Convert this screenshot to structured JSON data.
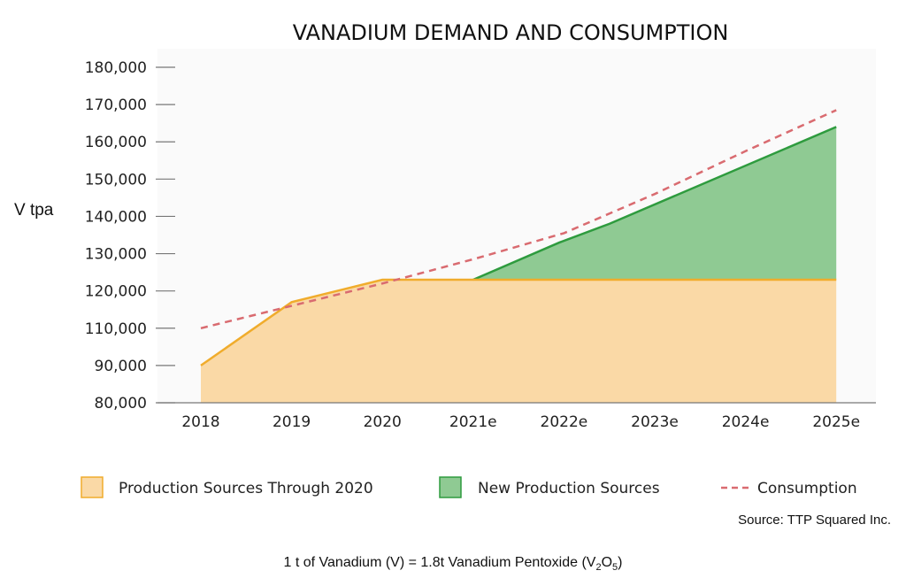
{
  "chart_data": {
    "type": "area",
    "title": "VANADIUM DEMAND AND CONSUMPTION",
    "ylabel": "V tpa",
    "xlabel": "",
    "categories": [
      "2018",
      "2019",
      "2020",
      "2021e",
      "2022e",
      "2023e",
      "2024e",
      "2025e"
    ],
    "y_tick_labels": [
      "80,000",
      "90,000",
      "110,000",
      "120,000",
      "130,000",
      "140,000",
      "150,000",
      "160,000",
      "170,000",
      "180,000"
    ],
    "series": [
      {
        "name": "Production Sources Through 2020",
        "type": "area",
        "color": "#fad9a6",
        "line_color": "#f0ac2c",
        "x": [
          0,
          1,
          2,
          3,
          4,
          5,
          6,
          7
        ],
        "values": [
          90000,
          117000,
          123000,
          123000,
          123000,
          123000,
          123000,
          123000
        ]
      },
      {
        "name": "New Production Sources",
        "type": "area",
        "color": "#8fca93",
        "line_color": "#2e9b3e",
        "x": [
          3.0,
          3.95,
          4.5,
          7.0
        ],
        "values": [
          123000,
          133000,
          138000,
          164000
        ]
      },
      {
        "name": "Consumption",
        "type": "line",
        "style": "dashed",
        "color": "#d96b70",
        "x": [
          0,
          1,
          2,
          3,
          4,
          5,
          6,
          7
        ],
        "values": [
          110000,
          116000,
          122000,
          128500,
          135500,
          146000,
          157500,
          168500
        ]
      }
    ],
    "legend_position": "bottom",
    "grid": false
  },
  "source_note": "Source: TTP Squared Inc.",
  "footnote": {
    "main": "1 t of Vanadium (V) = 1.8t Vanadium Pentoxide (V",
    "sub1": "2",
    "mid": "O",
    "sub2": "5",
    "end": ")"
  }
}
